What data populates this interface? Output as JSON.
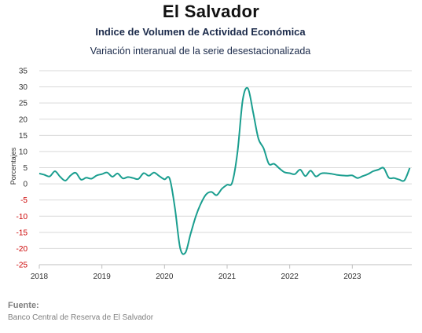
{
  "header": {
    "title": "El Salvador",
    "subtitle": "Indice de Volumen de  Actividad Económica",
    "description": "Variación interanual de la serie desestacionalizada"
  },
  "footer": {
    "source_label": "Fuente:",
    "source_text": "Banco Central de Reserva de El Salvador"
  },
  "chart_data": {
    "type": "line",
    "title": "El Salvador",
    "ylabel": "Porcentajes",
    "xlabel": "",
    "ylim": [
      -25,
      35
    ],
    "xlim": [
      2018.0,
      2023.95
    ],
    "grid": true,
    "yticks": [
      35,
      30,
      25,
      20,
      15,
      10,
      5,
      0,
      -5,
      -10,
      -15,
      -20,
      -25
    ],
    "xticks": [
      "2018",
      "2019",
      "2020",
      "2021",
      "2022",
      "2023"
    ],
    "colors": {
      "line": "#1a9e8f",
      "negative_tick": "#cc0000",
      "grid": "#d9d9d9"
    },
    "series": [
      {
        "x": [
          2018.0,
          2018.083,
          2018.167,
          2018.25,
          2018.333,
          2018.417,
          2018.5,
          2018.583,
          2018.667,
          2018.75,
          2018.833,
          2018.917,
          2019.0,
          2019.083,
          2019.167,
          2019.25,
          2019.333,
          2019.417,
          2019.5,
          2019.583,
          2019.667,
          2019.75,
          2019.833,
          2019.917,
          2020.0,
          2020.083,
          2020.167,
          2020.25,
          2020.333,
          2020.417,
          2020.5,
          2020.583,
          2020.667,
          2020.75,
          2020.833,
          2020.917,
          2021.0,
          2021.083,
          2021.167,
          2021.25,
          2021.333,
          2021.417,
          2021.5,
          2021.583,
          2021.667,
          2021.75,
          2021.833,
          2021.917,
          2022.0,
          2022.083,
          2022.167,
          2022.25,
          2022.333,
          2022.417,
          2022.5,
          2022.583,
          2022.667,
          2022.75,
          2022.833,
          2022.917,
          2023.0,
          2023.083,
          2023.167,
          2023.25,
          2023.333,
          2023.417,
          2023.5,
          2023.583,
          2023.667,
          2023.75,
          2023.833,
          2023.917
        ],
        "y": [
          3.2,
          2.8,
          2.3,
          3.9,
          2.2,
          1.0,
          2.6,
          3.4,
          1.3,
          1.9,
          1.6,
          2.6,
          3.0,
          3.5,
          2.2,
          3.2,
          1.7,
          2.1,
          1.8,
          1.5,
          3.3,
          2.5,
          3.5,
          2.4,
          1.4,
          1.6,
          -7.5,
          -19.8,
          -21.3,
          -15.5,
          -10.0,
          -6.0,
          -3.2,
          -2.5,
          -3.5,
          -1.5,
          -0.3,
          0.5,
          10.0,
          26.0,
          29.5,
          22.0,
          14.0,
          11.0,
          6.2,
          6.2,
          4.8,
          3.6,
          3.3,
          3.0,
          4.4,
          2.4,
          4.1,
          2.3,
          3.2,
          3.3,
          3.1,
          2.8,
          2.6,
          2.5,
          2.6,
          1.8,
          2.4,
          3.0,
          3.9,
          4.4,
          4.9,
          1.9,
          1.8,
          1.3,
          1.1,
          4.9
        ]
      }
    ]
  }
}
